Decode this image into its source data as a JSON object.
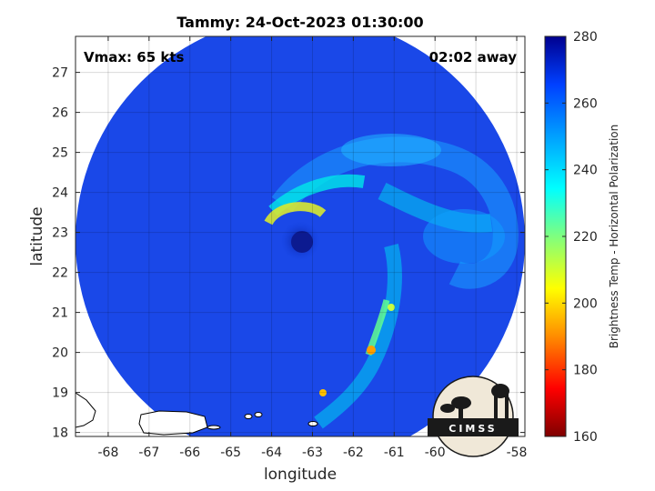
{
  "title": "Tammy: 24-Oct-2023 01:30:00",
  "annotations": {
    "vmax": "Vmax: 65 kts",
    "away": "02:02 away"
  },
  "colors": {
    "background": "#1040e0",
    "colormap": [
      "#7f0000",
      "#ff0000",
      "#ff8c00",
      "#ffff00",
      "#7fff7f",
      "#00ffff",
      "#00a0ff",
      "#0040ff",
      "#00008f"
    ]
  },
  "logo_text": "CIMSS",
  "chart_data": {
    "type": "heatmap",
    "title": "Tammy: 24-Oct-2023 01:30:00",
    "xlabel": "longitude",
    "ylabel": "latitude",
    "xlim": [
      -68.8,
      -57.8
    ],
    "ylim": [
      17.9,
      27.9
    ],
    "xticks": [
      -68,
      -67,
      -66,
      -65,
      -64,
      -63,
      -62,
      -61,
      -60,
      -59,
      -58
    ],
    "yticks": [
      18,
      19,
      20,
      21,
      22,
      23,
      24,
      25,
      26,
      27
    ],
    "grid": true,
    "colorbar": {
      "label": "Brightness Temp - Horizontal Polarization",
      "min": 160,
      "max": 280,
      "ticks": [
        160,
        180,
        200,
        220,
        240,
        260,
        280
      ]
    },
    "swath": {
      "center_lon": -63.3,
      "center_lat": 22.8,
      "radius_deg": 5.5
    },
    "storm_center": {
      "lon": -63.6,
      "lat": 22.9
    }
  }
}
